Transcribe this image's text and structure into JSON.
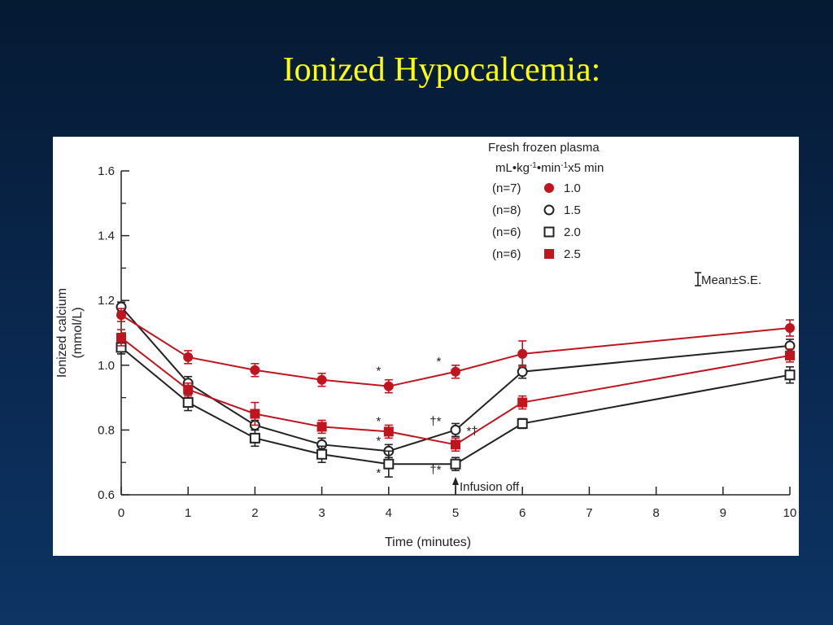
{
  "slide": {
    "title": "Ionized Hypocalcemia:"
  },
  "colors": {
    "background_top": "#051a33",
    "background_bottom": "#0d3464",
    "title": "#ffff00",
    "series_red": "#c0141e",
    "series_black": "#222222"
  },
  "chart_data": {
    "type": "line",
    "xlabel": "Time (minutes)",
    "ylabel": "Ionized calcium (mmol/L)",
    "ylabel_line1": "Ionized calcium",
    "ylabel_line2": "(mmol/L)",
    "xlim": [
      0,
      10
    ],
    "ylim": [
      0.6,
      1.6
    ],
    "x_ticks": [
      "0",
      "1",
      "2",
      "3",
      "4",
      "5",
      "6",
      "7",
      "8",
      "9",
      "10"
    ],
    "y_ticks": [
      "0.6",
      "0.8",
      "1.0",
      "1.2",
      "1.4",
      "1.6"
    ],
    "legend": {
      "title_line1": "Fresh frozen plasma",
      "title_line2_base": "mL•kg",
      "title_line2_sup1": "-1",
      "title_line2_mid": "•min",
      "title_line2_sup2": "-1",
      "title_line2_end": "x5 min",
      "placement": "top-right"
    },
    "error_bar_note": "Mean±S.E.",
    "series": [
      {
        "name": "1.0",
        "n": "(n=7)",
        "marker": "filled-circle",
        "color": "#c0141e",
        "x": [
          0,
          1,
          2,
          3,
          4,
          5,
          6,
          10
        ],
        "values": [
          1.155,
          1.025,
          0.985,
          0.955,
          0.935,
          0.98,
          1.035,
          1.115
        ],
        "err": [
          0.02,
          0.02,
          0.02,
          0.02,
          0.02,
          0.02,
          0.04,
          0.025
        ]
      },
      {
        "name": "1.5",
        "n": "(n=8)",
        "marker": "open-circle",
        "color": "#222222",
        "x": [
          0,
          1,
          2,
          3,
          4,
          5,
          6,
          10
        ],
        "values": [
          1.18,
          0.945,
          0.815,
          0.755,
          0.735,
          0.8,
          0.98,
          1.06
        ],
        "err": [
          0.015,
          0.02,
          0.015,
          0.02,
          0.02,
          0.02,
          0.02,
          0.02
        ]
      },
      {
        "name": "2.0",
        "n": "(n=6)",
        "marker": "open-square",
        "color": "#222222",
        "x": [
          0,
          1,
          2,
          3,
          4,
          5,
          6,
          10
        ],
        "values": [
          1.055,
          0.885,
          0.775,
          0.725,
          0.695,
          0.695,
          0.82,
          0.97
        ],
        "err": [
          0.02,
          0.025,
          0.025,
          0.025,
          0.04,
          0.02,
          0.015,
          0.025
        ]
      },
      {
        "name": "2.5",
        "n": "(n=6)",
        "marker": "filled-square",
        "color": "#c0141e",
        "x": [
          0,
          1,
          2,
          3,
          4,
          5,
          6,
          10
        ],
        "values": [
          1.085,
          0.925,
          0.85,
          0.81,
          0.795,
          0.755,
          0.885,
          1.03
        ],
        "err": [
          0.025,
          0.02,
          0.035,
          0.02,
          0.02,
          0.02,
          0.02,
          0.02
        ]
      }
    ],
    "annotations": [
      {
        "text": "*",
        "x": 3.85,
        "y": 0.97
      },
      {
        "text": "*",
        "x": 4.75,
        "y": 1.0
      },
      {
        "text": "*",
        "x": 3.85,
        "y": 0.815
      },
      {
        "text": "*",
        "x": 3.85,
        "y": 0.755
      },
      {
        "text": "*",
        "x": 3.85,
        "y": 0.655
      },
      {
        "text": "†*",
        "x": 4.7,
        "y": 0.815
      },
      {
        "text": "*†",
        "x": 5.25,
        "y": 0.785
      },
      {
        "text": "†*",
        "x": 4.7,
        "y": 0.665
      }
    ],
    "infusion_marker": {
      "x": 5,
      "label": "Infusion off"
    }
  }
}
